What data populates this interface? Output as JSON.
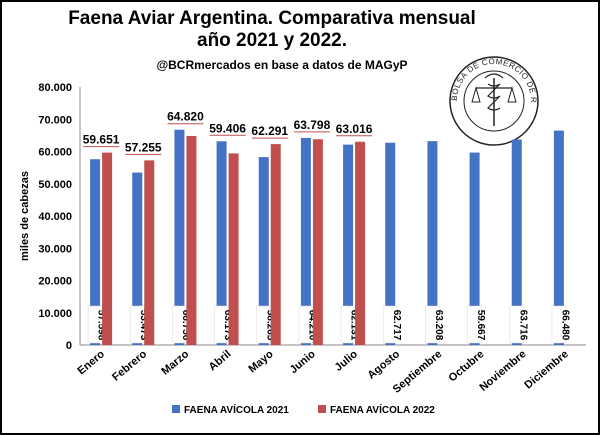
{
  "chart_data": {
    "type": "bar",
    "title": "Faena Aviar Argentina. Comparativa mensual año 2021 y 2022.",
    "subtitle": "@BCRmercados en base a datos de MAGyP",
    "xlabel": "",
    "ylabel": "miles de cabezas",
    "ylim": [
      0,
      80000
    ],
    "yticks": [
      "0",
      "10.000",
      "20.000",
      "30.000",
      "40.000",
      "50.000",
      "60.000",
      "70.000",
      "80.000"
    ],
    "ytick_values": [
      0,
      10000,
      20000,
      30000,
      40000,
      50000,
      60000,
      70000,
      80000
    ],
    "grid": false,
    "legend": "bottom",
    "categories": [
      "Enero",
      "Febrero",
      "Marzo",
      "Abril",
      "Mayo",
      "Junio",
      "Julio",
      "Agosto",
      "Septiembre",
      "Octubre",
      "Noviembre",
      "Diciembre"
    ],
    "series": [
      {
        "name": "FAENA AVÍCOLA 2021",
        "color": "#4472c4",
        "values": [
          57598,
          53473,
          66756,
          63173,
          58265,
          64210,
          62131,
          62717,
          63208,
          59667,
          63716,
          66480
        ],
        "labels": [
          "57.598",
          "53.473",
          "66.756",
          "63.173",
          "58.265",
          "64.210",
          "62.131",
          "62.717",
          "63.208",
          "59.667",
          "63.716",
          "66.480"
        ]
      },
      {
        "name": "FAENA AVÍCOLA 2022",
        "color": "#c0504d",
        "values": [
          59651,
          57255,
          64820,
          59406,
          62291,
          63798,
          63016,
          null,
          null,
          null,
          null,
          null
        ],
        "labels": [
          "59.651",
          "57.255",
          "64.820",
          "59.406",
          "62.291",
          "63.798",
          "63.016",
          "",
          "",
          "",
          "",
          ""
        ]
      }
    ],
    "seal_text": "BOLSA DE COMERCIO DE ROSARIO"
  }
}
